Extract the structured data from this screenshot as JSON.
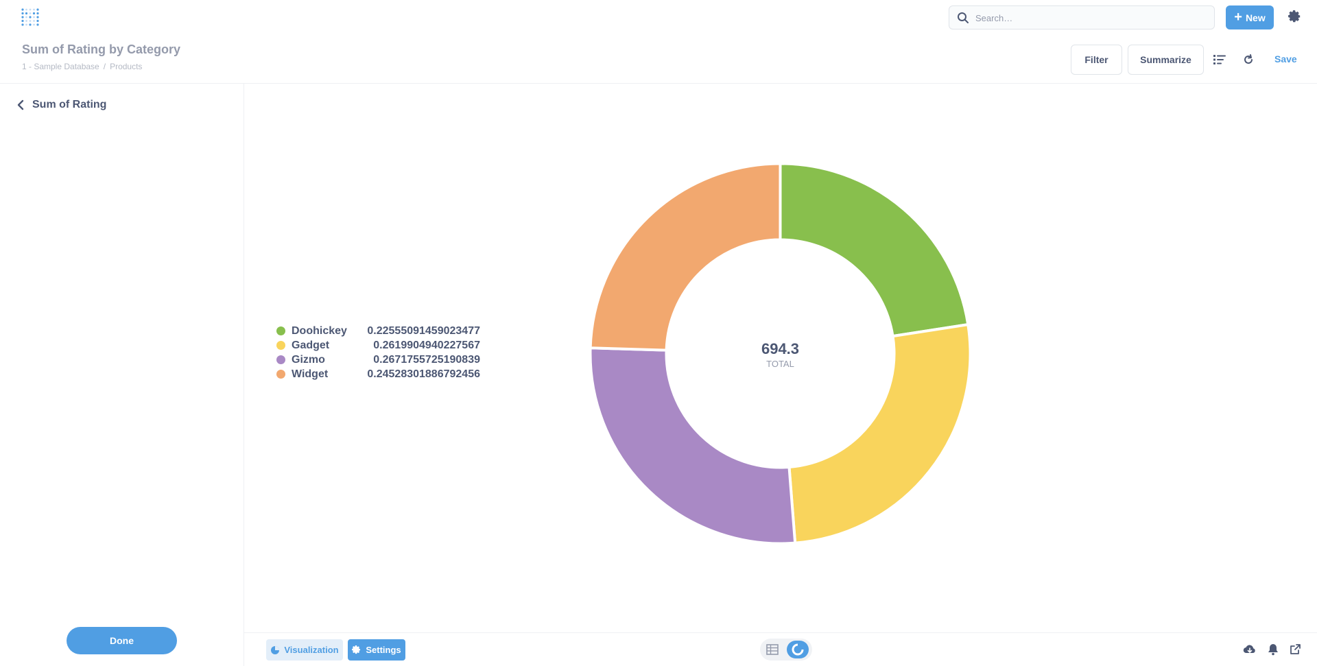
{
  "header": {
    "search_placeholder": "Search…",
    "new_label": "New",
    "title": "Sum of Rating by Category",
    "breadcrumbs": [
      "1 - Sample Database",
      "/",
      "Products"
    ],
    "filter_label": "Filter",
    "summarize_label": "Summarize",
    "save_label": "Save"
  },
  "sidebar": {
    "back_label": "Sum of Rating",
    "done_label": "Done"
  },
  "footer": {
    "visualization_label": "Visualization",
    "settings_label": "Settings"
  },
  "colors": {
    "brand": "#509ee3",
    "Doohickey": "#88bf4d",
    "Gadget": "#f9d45c",
    "Gizmo": "#a989c5",
    "Widget": "#f2a86f"
  },
  "chart_data": {
    "type": "pie",
    "donut": true,
    "categories": [
      "Doohickey",
      "Gadget",
      "Gizmo",
      "Widget"
    ],
    "values": [
      0.22555091459023477,
      0.2619904940227567,
      0.2671755725190839,
      0.24528301886792456
    ],
    "value_labels": [
      "0.22555091459023477",
      "0.2619904940227567",
      "0.2671755725190839",
      "0.24528301886792456"
    ],
    "total": "694.3",
    "total_label": "TOTAL",
    "legend_position": "left"
  }
}
